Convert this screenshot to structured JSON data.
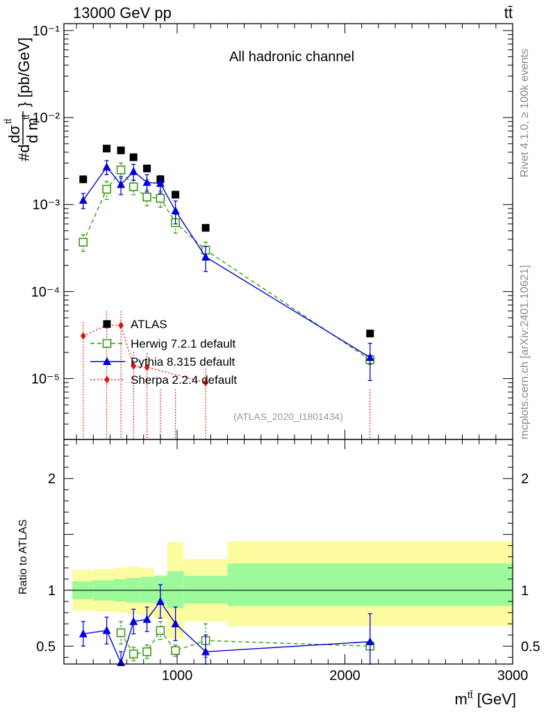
{
  "header": {
    "energy": "13000 GeV pp",
    "process": "tt̄"
  },
  "side_labels": {
    "rivet": "Rivet 4.1.0, ≥ 100k events",
    "source": "mcplots.cern.ch [arXiv:2401.10621]"
  },
  "colors": {
    "atlas": "#000000",
    "herwig": "#3a9a12",
    "pythia": "#0000dd",
    "sherpa": "#e8100e",
    "band_inner": "#9dfa9a",
    "band_outer": "#fbfba0"
  },
  "chart_data": [
    {
      "type": "scatter",
      "panel": "main",
      "title": "All hadronic channel",
      "analysis": "(ATLAS_2020_I1801434)",
      "ylabel": "#dσ^{tt̄}/d m^{tt̄} [pb/GeV]",
      "xlabel": "m^{tt̄} [GeV]",
      "xlim": [
        325,
        3000
      ],
      "ylim": [
        2e-06,
        0.12
      ],
      "yscale": "log",
      "y_tick_labels": [
        "10⁻⁵",
        "10⁻⁴",
        "10⁻³",
        "10⁻²",
        "10⁻¹"
      ],
      "x_tick_labels": [
        "1000",
        "2000",
        "3000"
      ],
      "legend_position": "middle-left",
      "series": [
        {
          "name": "ATLAS",
          "marker": "filled-square",
          "x": [
            440,
            580,
            665,
            740,
            820,
            900,
            990,
            1170,
            2150
          ],
          "y": [
            0.00195,
            0.0044,
            0.0042,
            0.0035,
            0.0026,
            0.00195,
            0.0013,
            0.00054,
            3.3e-05
          ],
          "err": [
            0,
            0,
            0,
            0,
            0,
            0,
            0,
            0,
            0
          ]
        },
        {
          "name": "Herwig 7.2.1 default",
          "marker": "open-square",
          "line": "dashed",
          "x": [
            440,
            580,
            665,
            740,
            820,
            900,
            990,
            1170,
            2150
          ],
          "y": [
            0.00037,
            0.0015,
            0.0025,
            0.0016,
            0.00122,
            0.00118,
            0.00062,
            0.0003,
            1.65e-05
          ],
          "err": [
            8e-05,
            0.00035,
            0.0005,
            0.0003,
            0.00025,
            0.00025,
            0.00015,
            7e-05,
            2e-06
          ]
        },
        {
          "name": "Pythia 8.315 default",
          "marker": "filled-triangle",
          "line": "solid",
          "x": [
            440,
            580,
            665,
            740,
            820,
            900,
            990,
            1170,
            2150
          ],
          "y": [
            0.00112,
            0.0027,
            0.0017,
            0.0024,
            0.0018,
            0.00175,
            0.00085,
            0.00025,
            1.75e-05
          ],
          "err": [
            0.00022,
            0.0005,
            0.0004,
            0.0005,
            0.0004,
            0.0004,
            0.00025,
            8e-05,
            8e-06
          ]
        },
        {
          "name": "Sherpa 2.2.4 default",
          "marker": "filled-diamond",
          "line": "dotted",
          "x": [
            440,
            580,
            665,
            740,
            820,
            900,
            990,
            1170,
            2150
          ],
          "y": [
            3.1e-05,
            4.1e-05,
            4.1e-05,
            1.4e-05,
            1.35e-05,
            0.0,
            0.0,
            9e-06,
            0.0
          ]
        }
      ]
    },
    {
      "type": "line",
      "panel": "ratio",
      "ylabel": "Ratio to ATLAS",
      "xlim": [
        325,
        3000
      ],
      "ylim": [
        0.34,
        2.35
      ],
      "y_tick_labels": [
        "0.5",
        "1",
        "2"
      ],
      "reference_line": 1,
      "bands": {
        "edges": [
          375,
          500,
          625,
          700,
          780,
          860,
          940,
          1040,
          1300,
          3000
        ],
        "inner_low": [
          0.92,
          0.91,
          0.9,
          0.89,
          0.89,
          0.88,
          0.84,
          0.88,
          0.86
        ],
        "inner_high": [
          1.08,
          1.09,
          1.1,
          1.11,
          1.12,
          1.13,
          1.17,
          1.13,
          1.24
        ],
        "outer_low": [
          0.82,
          0.81,
          0.8,
          0.79,
          0.77,
          0.75,
          0.57,
          0.72,
          0.68
        ],
        "outer_high": [
          1.18,
          1.19,
          1.2,
          1.21,
          1.2,
          1.14,
          1.43,
          1.28,
          1.44
        ]
      },
      "series": [
        {
          "name": "Herwig 7.2.1 default",
          "x": [
            665,
            740,
            820,
            900,
            990,
            1170,
            2150
          ],
          "y": [
            0.62,
            0.43,
            0.45,
            0.64,
            0.46,
            0.55,
            0.5
          ],
          "err": [
            0.1,
            0.06,
            0.06,
            0.08,
            0.05,
            0.15,
            0.01
          ]
        },
        {
          "name": "Pythia 8.315 default",
          "x": [
            440,
            580,
            665,
            740,
            820,
            900,
            990,
            1170,
            2150
          ],
          "y": [
            0.61,
            0.64,
            0.35,
            0.72,
            0.74,
            0.9,
            0.7,
            0.45,
            0.54
          ],
          "err": [
            0.11,
            0.12,
            0.1,
            0.11,
            0.11,
            0.15,
            0.15,
            0.15,
            0.25
          ]
        }
      ]
    }
  ]
}
